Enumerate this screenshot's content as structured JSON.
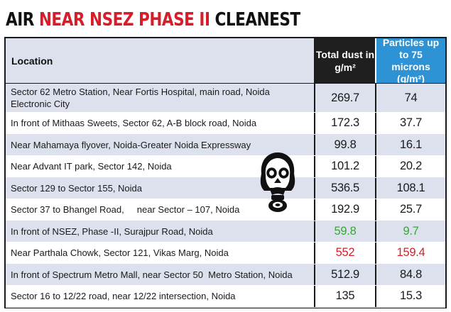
{
  "chart_data": {
    "type": "table",
    "title": {
      "part1": "AIR ",
      "part2": "NEAR NSEZ PHASE II",
      "part3": " CLEANEST"
    },
    "columns": {
      "location": "Location",
      "dust": "Total dust in g/m²",
      "particles": "Particles up to 75 microns (g/m²)"
    },
    "rows": [
      {
        "location": "Sector 62 Metro Station, Near Fortis Hospital, main road, Noida Electronic City",
        "dust": "269.7",
        "particles": "74",
        "dust_value": 269.7,
        "particles_value": 74
      },
      {
        "location": "In front of Mithaas Sweets, Sector 62, A-B block road, Noida",
        "dust": "172.3",
        "particles": "37.7",
        "dust_value": 172.3,
        "particles_value": 37.7
      },
      {
        "location": "Near Mahamaya flyover, Noida-Greater Noida Expressway",
        "dust": "99.8",
        "particles": "16.1",
        "dust_value": 99.8,
        "particles_value": 16.1
      },
      {
        "location": "Near Advant IT park, Sector 142, Noida",
        "dust": "101.2",
        "particles": "20.2",
        "dust_value": 101.2,
        "particles_value": 20.2
      },
      {
        "location": "Sector 129 to Sector 155, Noida",
        "dust": "536.5",
        "particles": "108.1",
        "dust_value": 536.5,
        "particles_value": 108.1
      },
      {
        "location": "Sector 37 to Bhangel Road,     near Sector – 107, Noida",
        "dust": "192.9",
        "particles": "25.7",
        "dust_value": 192.9,
        "particles_value": 25.7
      },
      {
        "location": "In front of NSEZ, Phase -II, Surajpur Road, Noida",
        "dust": "59.8",
        "particles": "9.7",
        "dust_value": 59.8,
        "particles_value": 9.7,
        "highlight": "#3da33a"
      },
      {
        "location": "Near Parthala Chowk, Sector 121, Vikas Marg, Noida",
        "dust": "552",
        "particles": "159.4",
        "dust_value": 552,
        "particles_value": 159.4,
        "highlight": "#d51e29"
      },
      {
        "location": "In front of Spectrum Metro Mall, near Sector 50  Metro Station, Noida",
        "dust": "512.9",
        "particles": "84.8",
        "dust_value": 512.9,
        "particles_value": 84.8
      },
      {
        "location": "Sector 16 to 12/22 road, near 12/22 intersection, Noida",
        "dust": "135",
        "particles": "15.3",
        "dust_value": 135,
        "particles_value": 15.3
      }
    ]
  },
  "colors": {
    "title_accent": "#d51e29",
    "header_dust_bg": "#1f1f1f",
    "header_particles_bg": "#2d93d4",
    "stripe": "#dde1ee",
    "cleanest": "#3da33a",
    "dirtiest": "#d51e29"
  },
  "icons": {
    "decoration": "gas-mask-icon"
  }
}
